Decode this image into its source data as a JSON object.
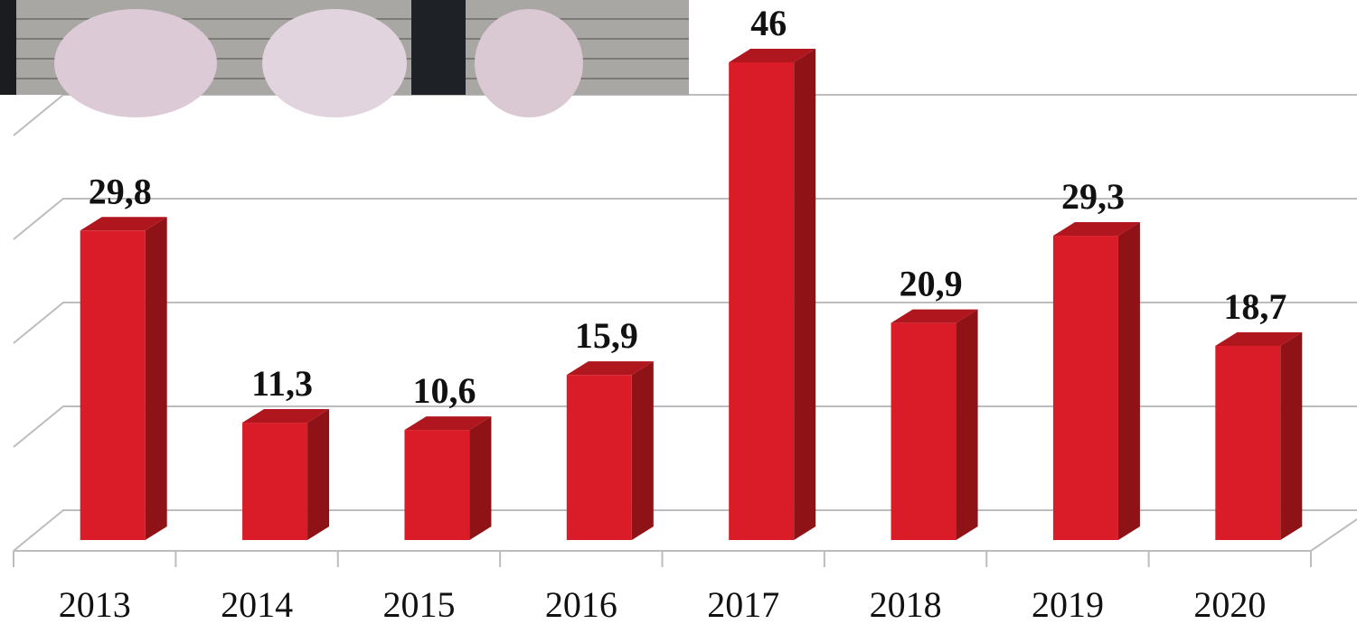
{
  "chart_data": {
    "type": "bar3d",
    "categories": [
      "2013",
      "2014",
      "2015",
      "2016",
      "2017",
      "2018",
      "2019",
      "2020"
    ],
    "values": [
      29.8,
      11.3,
      10.6,
      15.9,
      46,
      20.9,
      29.3,
      18.7
    ],
    "value_labels": [
      "29,8",
      "11,3",
      "10,6",
      "15,9",
      "46",
      "20,9",
      "29,3",
      "18,7"
    ],
    "color": "#d91c27",
    "ylim": [
      0,
      50
    ],
    "yticks": [
      0,
      10,
      20,
      30,
      40
    ],
    "grid": true
  }
}
